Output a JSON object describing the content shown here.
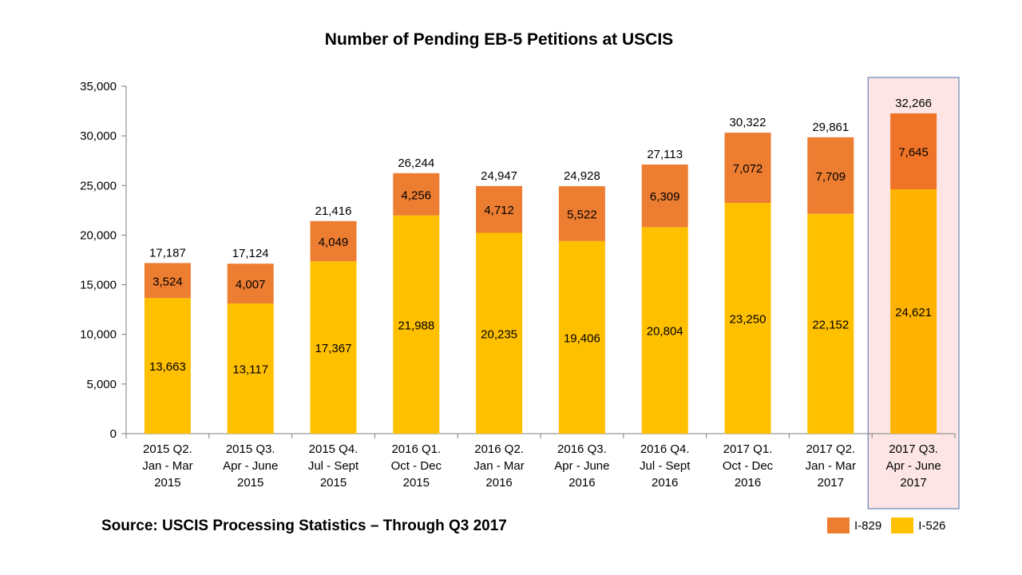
{
  "chart_data": {
    "type": "bar",
    "stacked": true,
    "title": "Number of Pending EB-5 Petitions at USCIS",
    "source": "Source: USCIS Processing Statistics – Through Q3 2017",
    "categories": [
      [
        "2015 Q2.",
        "Jan - Mar",
        "2015"
      ],
      [
        "2015 Q3.",
        "Apr - June",
        "2015"
      ],
      [
        "2015 Q4.",
        "Jul - Sept",
        "2015"
      ],
      [
        "2016 Q1.",
        "Oct - Dec",
        "2015"
      ],
      [
        "2016 Q2.",
        "Jan - Mar",
        "2016"
      ],
      [
        "2016 Q3.",
        "Apr - June",
        "2016"
      ],
      [
        "2016 Q4.",
        "Jul - Sept",
        "2016"
      ],
      [
        "2017 Q1.",
        "Oct - Dec",
        "2016"
      ],
      [
        "2017 Q2.",
        "Jan - Mar",
        "2017"
      ],
      [
        "2017 Q3.",
        "Apr - June",
        "2017"
      ]
    ],
    "series": [
      {
        "name": "I-526",
        "color": "#FFC000",
        "values": [
          13663,
          13117,
          17367,
          21988,
          20235,
          19406,
          20804,
          23250,
          22152,
          24621
        ],
        "labels": [
          "13,663",
          "13,117",
          "17,367",
          "21,988",
          "20,235",
          "19,406",
          "20,804",
          "23,250",
          "22,152",
          "24,621"
        ]
      },
      {
        "name": "I-829",
        "color": "#ED7D31",
        "values": [
          3524,
          4007,
          4049,
          4256,
          4712,
          5522,
          6309,
          7072,
          7709,
          7645
        ],
        "labels": [
          "3,524",
          "4,007",
          "4,049",
          "4,256",
          "4,712",
          "5,522",
          "6,309",
          "7,072",
          "7,709",
          "7,645"
        ]
      }
    ],
    "totals": [
      17187,
      17124,
      21416,
      26244,
      24947,
      24928,
      27113,
      30322,
      29861,
      32266
    ],
    "total_labels": [
      "17,187",
      "17,124",
      "21,416",
      "26,244",
      "24,947",
      "24,928",
      "27,113",
      "30,322",
      "29,861",
      "32,266"
    ],
    "ylim": [
      0,
      35000
    ],
    "yticks": [
      0,
      5000,
      10000,
      15000,
      20000,
      25000,
      30000,
      35000
    ],
    "ytick_labels": [
      "0",
      "5,000",
      "10,000",
      "15,000",
      "20,000",
      "25,000",
      "30,000",
      "35,000"
    ],
    "highlight_index": 9,
    "highlight_colors": {
      "I-526": "#FFB300",
      "I-829": "#F07427",
      "background": "#FDE5E5",
      "border": "#4A6FA8"
    },
    "legend": [
      {
        "name": "I-829",
        "color": "#ED7D31"
      },
      {
        "name": "I-526",
        "color": "#FFC000"
      }
    ],
    "xlabel": "",
    "ylabel": ""
  }
}
